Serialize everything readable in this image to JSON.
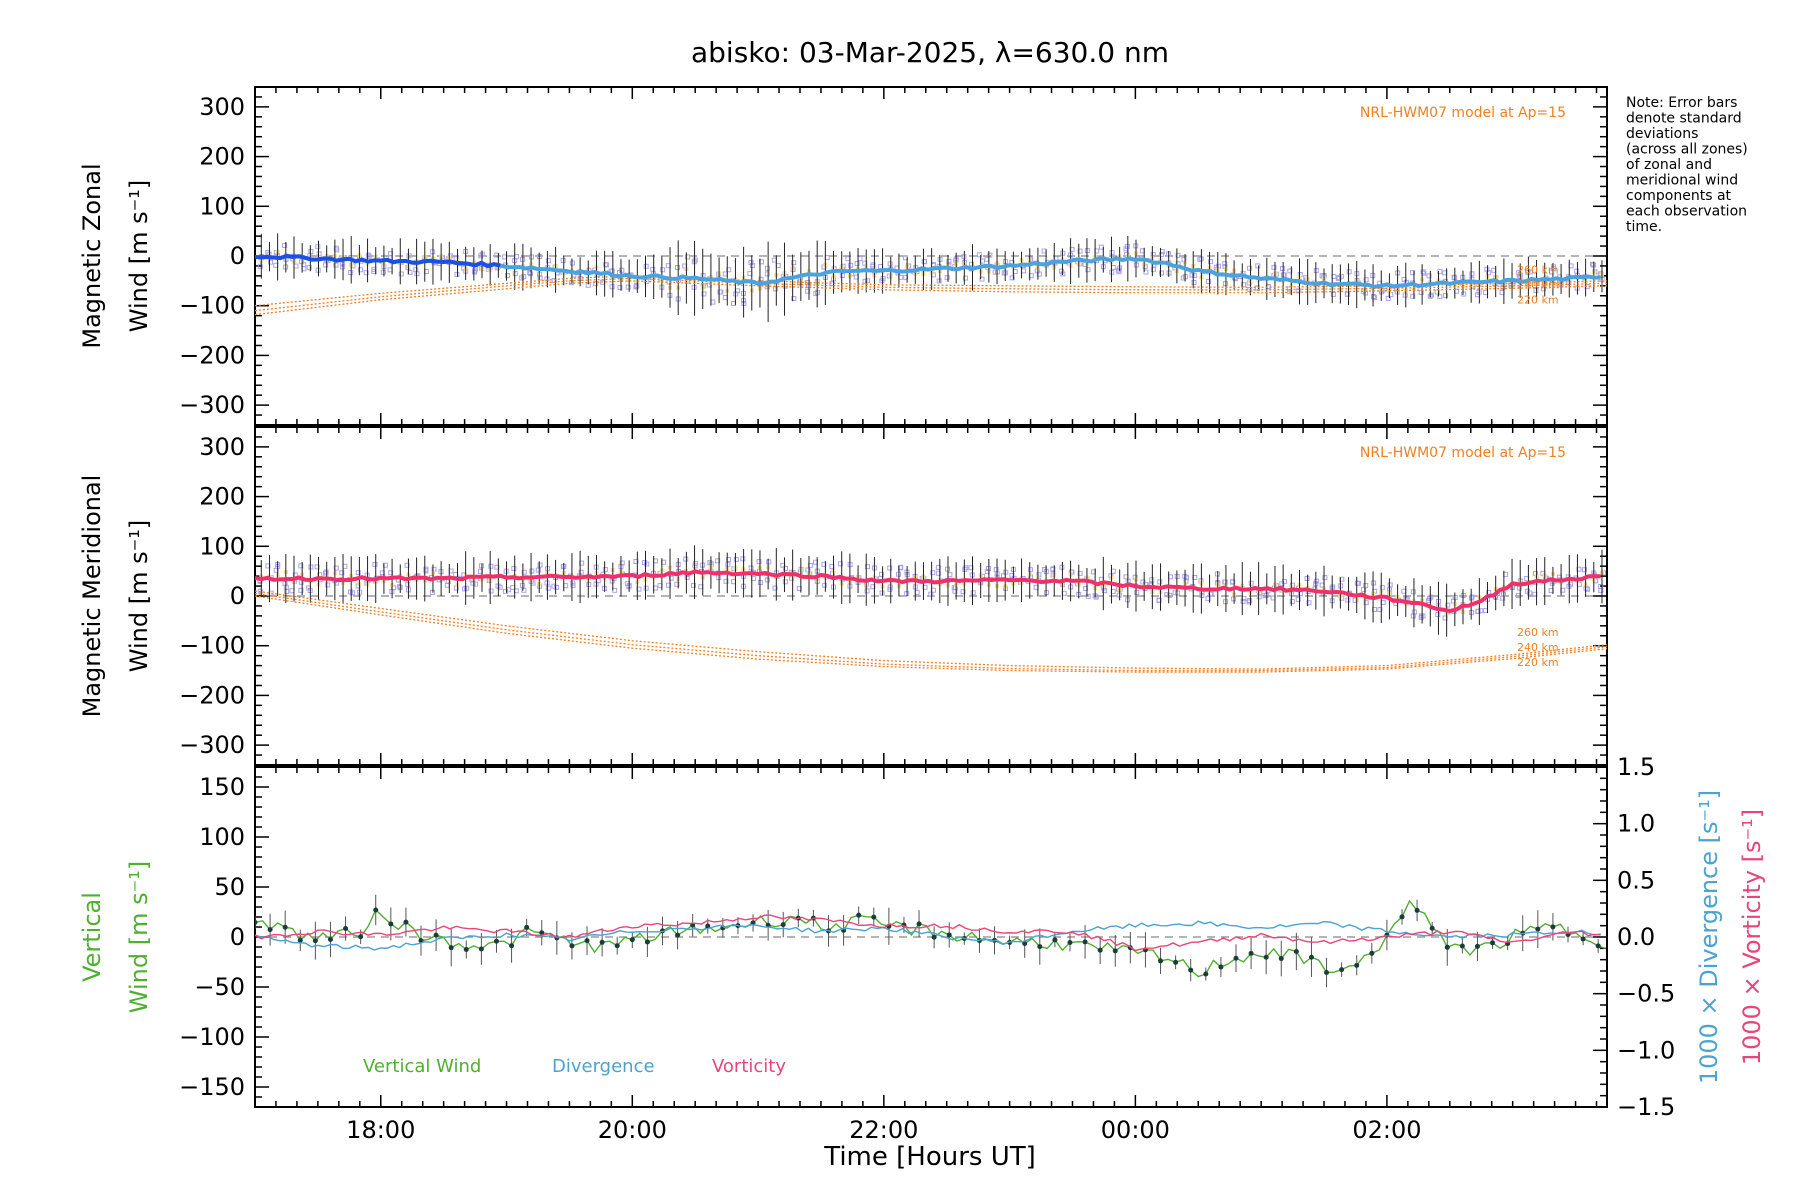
{
  "chart_data": {
    "title": "abisko: 03-Mar-2025, λ=630.0 nm",
    "xlabel": "Time [Hours UT]",
    "x_ticks": [
      {
        "t": 18,
        "label": "18:00"
      },
      {
        "t": 20,
        "label": "20:00"
      },
      {
        "t": 22,
        "label": "22:00"
      },
      {
        "t": 24,
        "label": "00:00"
      },
      {
        "t": 26,
        "label": "02:00"
      }
    ],
    "xlim": [
      17.0,
      27.75
    ],
    "note": [
      "Note: Error bars",
      "denote standard",
      "deviations",
      "(across all zones)",
      "of zonal and",
      "meridional wind",
      "components at",
      "each observation",
      "time."
    ],
    "colors": {
      "zonal": "#1a50e6",
      "zonal_light": "#4aa3e0",
      "meridional": "#f0306a",
      "model": "#f08020",
      "scatter_purple": "#a9a3e6",
      "scatter_yellow": "#f5dd95",
      "vertical": "#4fb030",
      "divergence": "#4aa3d0",
      "vorticity": "#e8457a",
      "zero_line": "#888888"
    },
    "panels": [
      {
        "name": "zonal",
        "type": "line",
        "ylabel": [
          "Magnetic Zonal",
          "Wind [m s⁻¹]"
        ],
        "ylim": [
          -340,
          340
        ],
        "y_ticks": [
          300,
          200,
          100,
          0,
          -100,
          -200,
          -300
        ],
        "y_tick_labels": [
          "300",
          "200",
          "100",
          "0",
          "−100",
          "−200",
          "−300"
        ],
        "model_label": "NRL-HWM07 model at Ap=15",
        "model_alt_labels": [
          "260 km",
          "240 km",
          "220 km"
        ],
        "series": [
          {
            "name": "Zonal wind (mean)",
            "x": [
              17.0,
              17.5,
              18.0,
              18.5,
              19.0,
              19.5,
              20.0,
              20.5,
              20.75,
              21.0,
              21.25,
              21.5,
              21.75,
              22.0,
              22.5,
              23.0,
              23.5,
              24.0,
              24.25,
              24.5,
              25.0,
              25.5,
              26.0,
              26.5,
              27.0,
              27.5,
              27.75
            ],
            "y": [
              0,
              -5,
              -10,
              -12,
              -20,
              -30,
              -40,
              -45,
              -50,
              -55,
              -45,
              -35,
              -30,
              -30,
              -25,
              -20,
              -10,
              -5,
              -15,
              -30,
              -45,
              -55,
              -60,
              -55,
              -50,
              -45,
              -40
            ]
          },
          {
            "name": "HWM07 260 km",
            "x": [
              17.0,
              18.0,
              19.0,
              19.5,
              20.0,
              21.0,
              22.0,
              23.0,
              24.0,
              25.0,
              26.0,
              27.0,
              27.75
            ],
            "y": [
              -100,
              -75,
              -55,
              -45,
              -40,
              -50,
              -58,
              -60,
              -62,
              -63,
              -60,
              -55,
              -50
            ]
          },
          {
            "name": "HWM07 240 km",
            "x": [
              17.0,
              18.0,
              19.0,
              19.5,
              20.0,
              21.0,
              22.0,
              23.0,
              24.0,
              25.0,
              26.0,
              27.0,
              27.75
            ],
            "y": [
              -110,
              -82,
              -60,
              -50,
              -45,
              -55,
              -63,
              -66,
              -68,
              -68,
              -65,
              -60,
              -55
            ]
          },
          {
            "name": "HWM07 220 km",
            "x": [
              17.0,
              18.0,
              19.0,
              19.5,
              20.0,
              21.0,
              22.0,
              23.0,
              24.0,
              25.0,
              26.0,
              27.0,
              27.75
            ],
            "y": [
              -118,
              -88,
              -66,
              -55,
              -50,
              -60,
              -68,
              -72,
              -74,
              -74,
              -70,
              -65,
              -60
            ]
          }
        ]
      },
      {
        "name": "meridional",
        "type": "line",
        "ylabel": [
          "Magnetic Meridional",
          "Wind [m s⁻¹]"
        ],
        "ylim": [
          -340,
          340
        ],
        "y_ticks": [
          300,
          200,
          100,
          0,
          -100,
          -200,
          -300
        ],
        "y_tick_labels": [
          "300",
          "200",
          "100",
          "0",
          "−100",
          "−200",
          "−300"
        ],
        "model_label": "NRL-HWM07 model at Ap=15",
        "model_alt_labels": [
          "260 km",
          "240 km",
          "220 km"
        ],
        "series": [
          {
            "name": "Meridional wind (mean)",
            "x": [
              17.0,
              17.5,
              18.0,
              18.5,
              19.0,
              19.5,
              20.0,
              20.5,
              21.0,
              21.5,
              22.0,
              22.5,
              23.0,
              23.5,
              24.0,
              24.5,
              25.0,
              25.5,
              26.0,
              26.25,
              26.5,
              26.75,
              27.0,
              27.5,
              27.75
            ],
            "y": [
              35,
              35,
              35,
              35,
              38,
              38,
              40,
              48,
              45,
              40,
              30,
              30,
              32,
              30,
              20,
              15,
              15,
              10,
              -5,
              -15,
              -30,
              -10,
              25,
              35,
              40
            ]
          },
          {
            "name": "HWM07 260 km",
            "x": [
              17.0,
              18.0,
              19.0,
              20.0,
              21.0,
              22.0,
              23.0,
              24.0,
              25.0,
              26.0,
              27.0,
              27.75
            ],
            "y": [
              10,
              -25,
              -60,
              -90,
              -112,
              -130,
              -140,
              -145,
              -147,
              -140,
              -118,
              -98
            ]
          },
          {
            "name": "HWM07 240 km",
            "x": [
              17.0,
              18.0,
              19.0,
              20.0,
              21.0,
              22.0,
              23.0,
              24.0,
              25.0,
              26.0,
              27.0,
              27.75
            ],
            "y": [
              5,
              -32,
              -68,
              -98,
              -120,
              -137,
              -146,
              -150,
              -150,
              -144,
              -122,
              -102
            ]
          },
          {
            "name": "HWM07 220 km",
            "x": [
              17.0,
              18.0,
              19.0,
              20.0,
              21.0,
              22.0,
              23.0,
              24.0,
              25.0,
              26.0,
              27.0,
              27.75
            ],
            "y": [
              0,
              -38,
              -75,
              -105,
              -127,
              -142,
              -150,
              -153,
              -153,
              -147,
              -126,
              -106
            ]
          }
        ]
      },
      {
        "name": "vertical",
        "type": "line",
        "ylabel": [
          "Vertical",
          "Wind [m s⁻¹]"
        ],
        "ylabel_right1": "1000 × Divergence [s⁻¹]",
        "ylabel_right2": "1000 × Vorticity [s⁻¹]",
        "ylim": [
          -170,
          170
        ],
        "y_ticks": [
          150,
          100,
          50,
          0,
          -50,
          -100,
          -150
        ],
        "y_tick_labels": [
          "150",
          "100",
          "50",
          "0",
          "−50",
          "−100",
          "−150"
        ],
        "y2lim": [
          -1.5,
          1.5
        ],
        "y2_ticks": [
          1.5,
          1.0,
          0.5,
          0.0,
          -0.5,
          -1.0,
          -1.5
        ],
        "y2_tick_labels": [
          "1.5",
          "1.0",
          "0.5",
          "0.0",
          "−0.5",
          "−1.0",
          "−1.5"
        ],
        "legend": [
          "Vertical Wind",
          "Divergence",
          "Vorticity"
        ],
        "series": [
          {
            "name": "Vertical Wind",
            "x": [
              17.0,
              17.4,
              17.8,
              18.0,
              18.3,
              18.6,
              18.9,
              19.2,
              19.5,
              19.8,
              20.1,
              20.4,
              20.7,
              21.0,
              21.3,
              21.5,
              21.8,
              22.1,
              22.4,
              22.7,
              23.0,
              23.3,
              23.6,
              23.9,
              24.2,
              24.5,
              24.8,
              25.1,
              25.4,
              25.7,
              26.0,
              26.2,
              26.4,
              26.7,
              27.0,
              27.3,
              27.5,
              27.75
            ],
            "y": [
              20,
              0,
              2,
              25,
              2,
              -5,
              -10,
              5,
              -5,
              -10,
              0,
              5,
              10,
              15,
              20,
              10,
              15,
              10,
              5,
              0,
              -5,
              -5,
              -10,
              -15,
              -20,
              -35,
              -20,
              -15,
              -25,
              -35,
              0,
              35,
              0,
              -15,
              0,
              10,
              5,
              -5
            ]
          },
          {
            "name": "Divergence",
            "x": [
              17.0,
              17.5,
              18.0,
              18.5,
              19.0,
              19.5,
              20.0,
              20.5,
              21.0,
              21.5,
              22.0,
              22.5,
              23.0,
              23.5,
              24.0,
              24.5,
              25.0,
              25.5,
              26.0,
              26.5,
              27.0,
              27.5,
              27.75
            ],
            "y": [
              0.0,
              -0.08,
              -0.1,
              -0.02,
              0.02,
              -0.02,
              0.05,
              0.08,
              0.1,
              0.05,
              0.08,
              0.0,
              -0.05,
              0.05,
              0.1,
              0.12,
              0.08,
              0.12,
              0.05,
              0.0,
              0.02,
              0.05,
              0.0
            ]
          },
          {
            "name": "Vorticity",
            "x": [
              17.0,
              17.5,
              18.0,
              18.5,
              19.0,
              19.5,
              20.0,
              20.5,
              21.0,
              21.5,
              22.0,
              22.5,
              23.0,
              23.5,
              24.0,
              24.5,
              25.0,
              25.5,
              26.0,
              26.5,
              27.0,
              27.5,
              27.75
            ],
            "y": [
              0.0,
              0.05,
              0.02,
              0.08,
              0.05,
              0.0,
              0.1,
              0.12,
              0.18,
              0.15,
              0.1,
              0.1,
              0.05,
              0.05,
              -0.1,
              -0.05,
              0.02,
              -0.05,
              0.0,
              0.05,
              -0.05,
              0.05,
              0.0
            ]
          }
        ]
      }
    ]
  }
}
